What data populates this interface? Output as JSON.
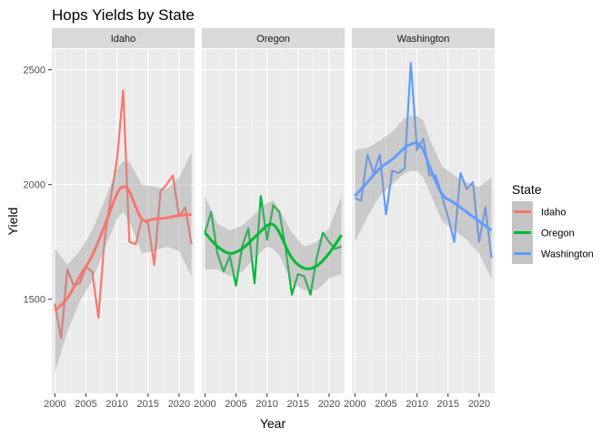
{
  "chart_data": {
    "type": "line",
    "title": "Hops Yields by State",
    "xlabel": "Year",
    "ylabel": "Yield",
    "xlim": [
      1999.5,
      2022.5
    ],
    "ylim": [
      1090,
      2590
    ],
    "x_ticks": [
      2000,
      2005,
      2010,
      2015,
      2020
    ],
    "y_ticks": [
      1500,
      2000,
      2500
    ],
    "facet_by": "State",
    "grid": true,
    "legend": {
      "title": "State",
      "position": "right"
    },
    "colors": {
      "Idaho": "#F8766D",
      "Oregon": "#00BA38",
      "Washington": "#619CFF"
    },
    "band_color": "#999999",
    "panel_background": "#ebebeb",
    "strip_background": "#d9d9d9",
    "series": [
      {
        "name": "Idaho",
        "x": [
          2000,
          2001,
          2002,
          2003,
          2004,
          2005,
          2006,
          2007,
          2008,
          2009,
          2010,
          2011,
          2012,
          2013,
          2014,
          2015,
          2016,
          2017,
          2018,
          2019,
          2020,
          2021,
          2022
        ],
        "values": [
          1480,
          1330,
          1630,
          1560,
          1570,
          1640,
          1620,
          1420,
          1760,
          1940,
          2110,
          2410,
          1750,
          1740,
          1850,
          1830,
          1650,
          1970,
          2000,
          2040,
          1860,
          1900,
          1740
        ],
        "smooth": [
          [
            2000,
            1450
          ],
          [
            2002,
            1505
          ],
          [
            2004,
            1600
          ],
          [
            2006,
            1690
          ],
          [
            2008,
            1820
          ],
          [
            2010,
            1960
          ],
          [
            2011,
            1990
          ],
          [
            2012,
            1970
          ],
          [
            2014,
            1850
          ],
          [
            2016,
            1850
          ],
          [
            2018,
            1855
          ],
          [
            2020,
            1865
          ],
          [
            2022,
            1870
          ]
        ],
        "band": [
          [
            2000,
            1180,
            1720
          ],
          [
            2002,
            1360,
            1650
          ],
          [
            2004,
            1490,
            1710
          ],
          [
            2006,
            1580,
            1800
          ],
          [
            2008,
            1720,
            1930
          ],
          [
            2010,
            1850,
            2070
          ],
          [
            2011,
            1880,
            2100
          ],
          [
            2012,
            1840,
            2100
          ],
          [
            2014,
            1700,
            2000
          ],
          [
            2016,
            1710,
            1990
          ],
          [
            2018,
            1730,
            1980
          ],
          [
            2020,
            1710,
            2030
          ],
          [
            2022,
            1600,
            2140
          ]
        ]
      },
      {
        "name": "Oregon",
        "x": [
          2000,
          2001,
          2002,
          2003,
          2004,
          2005,
          2006,
          2007,
          2008,
          2009,
          2010,
          2011,
          2012,
          2013,
          2014,
          2015,
          2016,
          2017,
          2018,
          2019,
          2020,
          2021,
          2022
        ],
        "values": [
          1790,
          1880,
          1700,
          1620,
          1690,
          1560,
          1730,
          1810,
          1570,
          1950,
          1760,
          1910,
          1880,
          1720,
          1520,
          1610,
          1600,
          1520,
          1680,
          1790,
          1750,
          1720,
          1730
        ],
        "smooth": [
          [
            2000,
            1790
          ],
          [
            2002,
            1730
          ],
          [
            2004,
            1700
          ],
          [
            2006,
            1720
          ],
          [
            2008,
            1770
          ],
          [
            2010,
            1820
          ],
          [
            2011,
            1825
          ],
          [
            2012,
            1790
          ],
          [
            2014,
            1680
          ],
          [
            2016,
            1635
          ],
          [
            2018,
            1645
          ],
          [
            2020,
            1700
          ],
          [
            2022,
            1780
          ]
        ],
        "band": [
          [
            2000,
            1630,
            1950
          ],
          [
            2002,
            1630,
            1830
          ],
          [
            2004,
            1600,
            1800
          ],
          [
            2006,
            1620,
            1820
          ],
          [
            2008,
            1680,
            1870
          ],
          [
            2010,
            1730,
            1920
          ],
          [
            2011,
            1720,
            1930
          ],
          [
            2012,
            1690,
            1890
          ],
          [
            2014,
            1570,
            1790
          ],
          [
            2016,
            1540,
            1730
          ],
          [
            2018,
            1540,
            1750
          ],
          [
            2020,
            1590,
            1810
          ],
          [
            2022,
            1610,
            1950
          ]
        ]
      },
      {
        "name": "Washington",
        "x": [
          2000,
          2001,
          2002,
          2003,
          2004,
          2005,
          2006,
          2007,
          2008,
          2009,
          2010,
          2011,
          2012,
          2013,
          2014,
          2015,
          2016,
          2017,
          2018,
          2019,
          2020,
          2021,
          2022
        ],
        "values": [
          1940,
          1930,
          2130,
          2050,
          2130,
          1870,
          2060,
          2050,
          2070,
          2530,
          2150,
          2200,
          2040,
          2040,
          1950,
          1860,
          1750,
          2050,
          1980,
          2010,
          1750,
          1900,
          1680
        ],
        "smooth": [
          [
            2000,
            1950
          ],
          [
            2002,
            2010
          ],
          [
            2004,
            2070
          ],
          [
            2006,
            2110
          ],
          [
            2008,
            2160
          ],
          [
            2009,
            2175
          ],
          [
            2010,
            2180
          ],
          [
            2011,
            2150
          ],
          [
            2012,
            2080
          ],
          [
            2014,
            1960
          ],
          [
            2016,
            1920
          ],
          [
            2018,
            1880
          ],
          [
            2020,
            1840
          ],
          [
            2022,
            1800
          ]
        ],
        "band": [
          [
            2000,
            1750,
            2150
          ],
          [
            2002,
            1860,
            2160
          ],
          [
            2004,
            1950,
            2190
          ],
          [
            2006,
            2000,
            2230
          ],
          [
            2008,
            2050,
            2290
          ],
          [
            2009,
            2060,
            2300
          ],
          [
            2010,
            2060,
            2300
          ],
          [
            2011,
            2030,
            2280
          ],
          [
            2012,
            1970,
            2200
          ],
          [
            2014,
            1840,
            2080
          ],
          [
            2016,
            1800,
            2040
          ],
          [
            2018,
            1760,
            2010
          ],
          [
            2020,
            1700,
            1990
          ],
          [
            2022,
            1590,
            2030
          ]
        ]
      }
    ]
  }
}
